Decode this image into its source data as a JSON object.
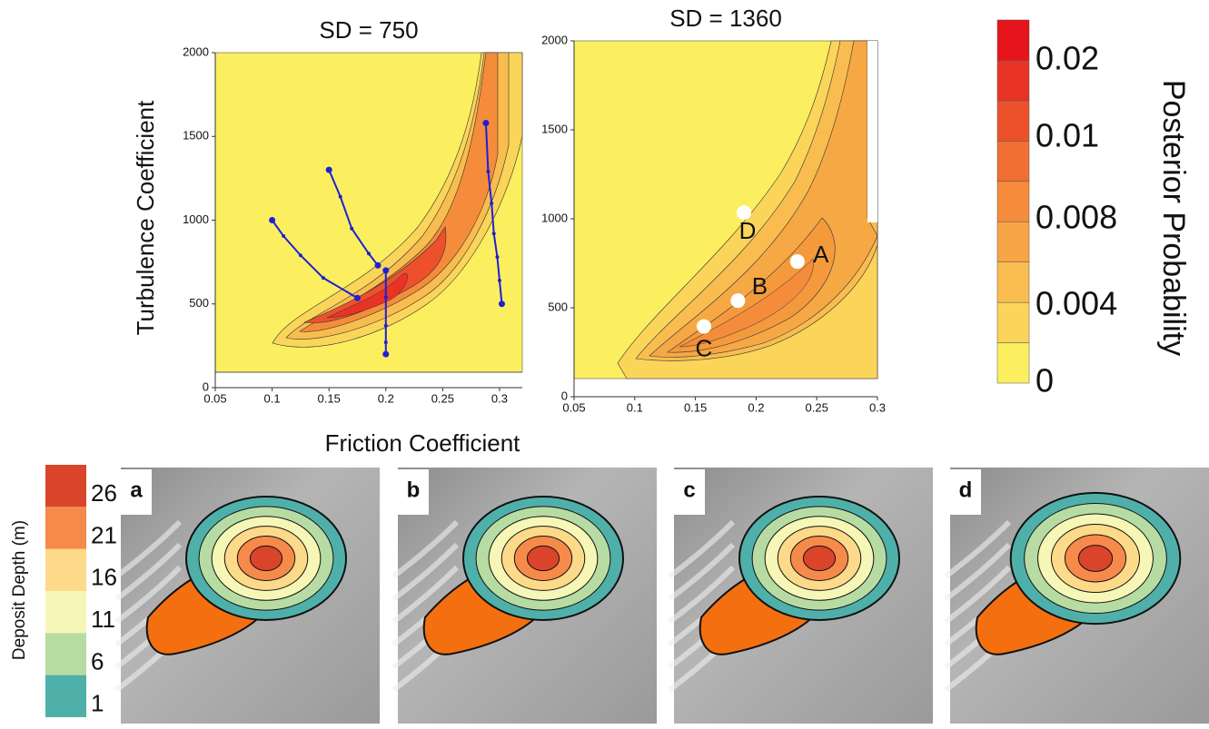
{
  "chart_data": [
    {
      "type": "contour",
      "title": "SD = 750",
      "y_label": "Turbulence Coefficient",
      "xlim": [
        0.05,
        0.32
      ],
      "ylim": [
        0,
        2000
      ],
      "xticks": [
        0.05,
        0.1,
        0.15,
        0.2,
        0.25,
        0.3
      ],
      "yticks": [
        0,
        500,
        1000,
        1500,
        2000
      ],
      "series": [
        {
          "color": "#1f1fd6",
          "x": [
            0.1,
            0.11,
            0.125,
            0.145,
            0.175
          ],
          "values": [
            1000,
            905,
            790,
            655,
            535
          ]
        },
        {
          "color": "#1f1fd6",
          "x": [
            0.15,
            0.16,
            0.17,
            0.185,
            0.193
          ],
          "values": [
            1300,
            1140,
            950,
            800,
            730
          ]
        },
        {
          "color": "#1f1fd6",
          "x": [
            0.2,
            0.2,
            0.2,
            0.2,
            0.2
          ],
          "values": [
            700,
            540,
            370,
            270,
            200
          ]
        },
        {
          "color": "#1f1fd6",
          "x": [
            0.288,
            0.29,
            0.293,
            0.295,
            0.298,
            0.3,
            0.302
          ],
          "values": [
            1580,
            1290,
            1100,
            920,
            780,
            640,
            500
          ]
        }
      ]
    },
    {
      "type": "contour",
      "title": "SD = 1360",
      "xlim": [
        0.05,
        0.3
      ],
      "ylim": [
        0,
        2000
      ],
      "xticks": [
        0.05,
        0.1,
        0.15,
        0.2,
        0.25,
        0.3
      ],
      "yticks": [
        0,
        500,
        1000,
        1500,
        2000
      ],
      "points": [
        {
          "label": "A",
          "x": 0.234,
          "y": 760
        },
        {
          "label": "B",
          "x": 0.185,
          "y": 540
        },
        {
          "label": "C",
          "x": 0.157,
          "y": 395
        },
        {
          "label": "D",
          "x": 0.19,
          "y": 1035
        }
      ]
    }
  ],
  "x_label": "Friction Coefficient",
  "colorbar": {
    "label": "Posterior Probability",
    "ticks": [
      0,
      0.004,
      0.008,
      0.01,
      0.02
    ],
    "colors": [
      "#fcef5f",
      "#fbd55a",
      "#f9bd4f",
      "#f7a545",
      "#f48c3b",
      "#f16f33",
      "#ed512b",
      "#e93324",
      "#e6141c"
    ]
  },
  "depth_legend": {
    "label": "Deposit Depth (m)",
    "ticks": [
      26,
      21,
      16,
      11,
      6,
      1
    ],
    "colors": [
      "#d9442b",
      "#f58a4a",
      "#fdd98a",
      "#f6f7b6",
      "#b7dca3",
      "#4fb0aa"
    ]
  },
  "panels": [
    "a",
    "b",
    "c",
    "d"
  ]
}
